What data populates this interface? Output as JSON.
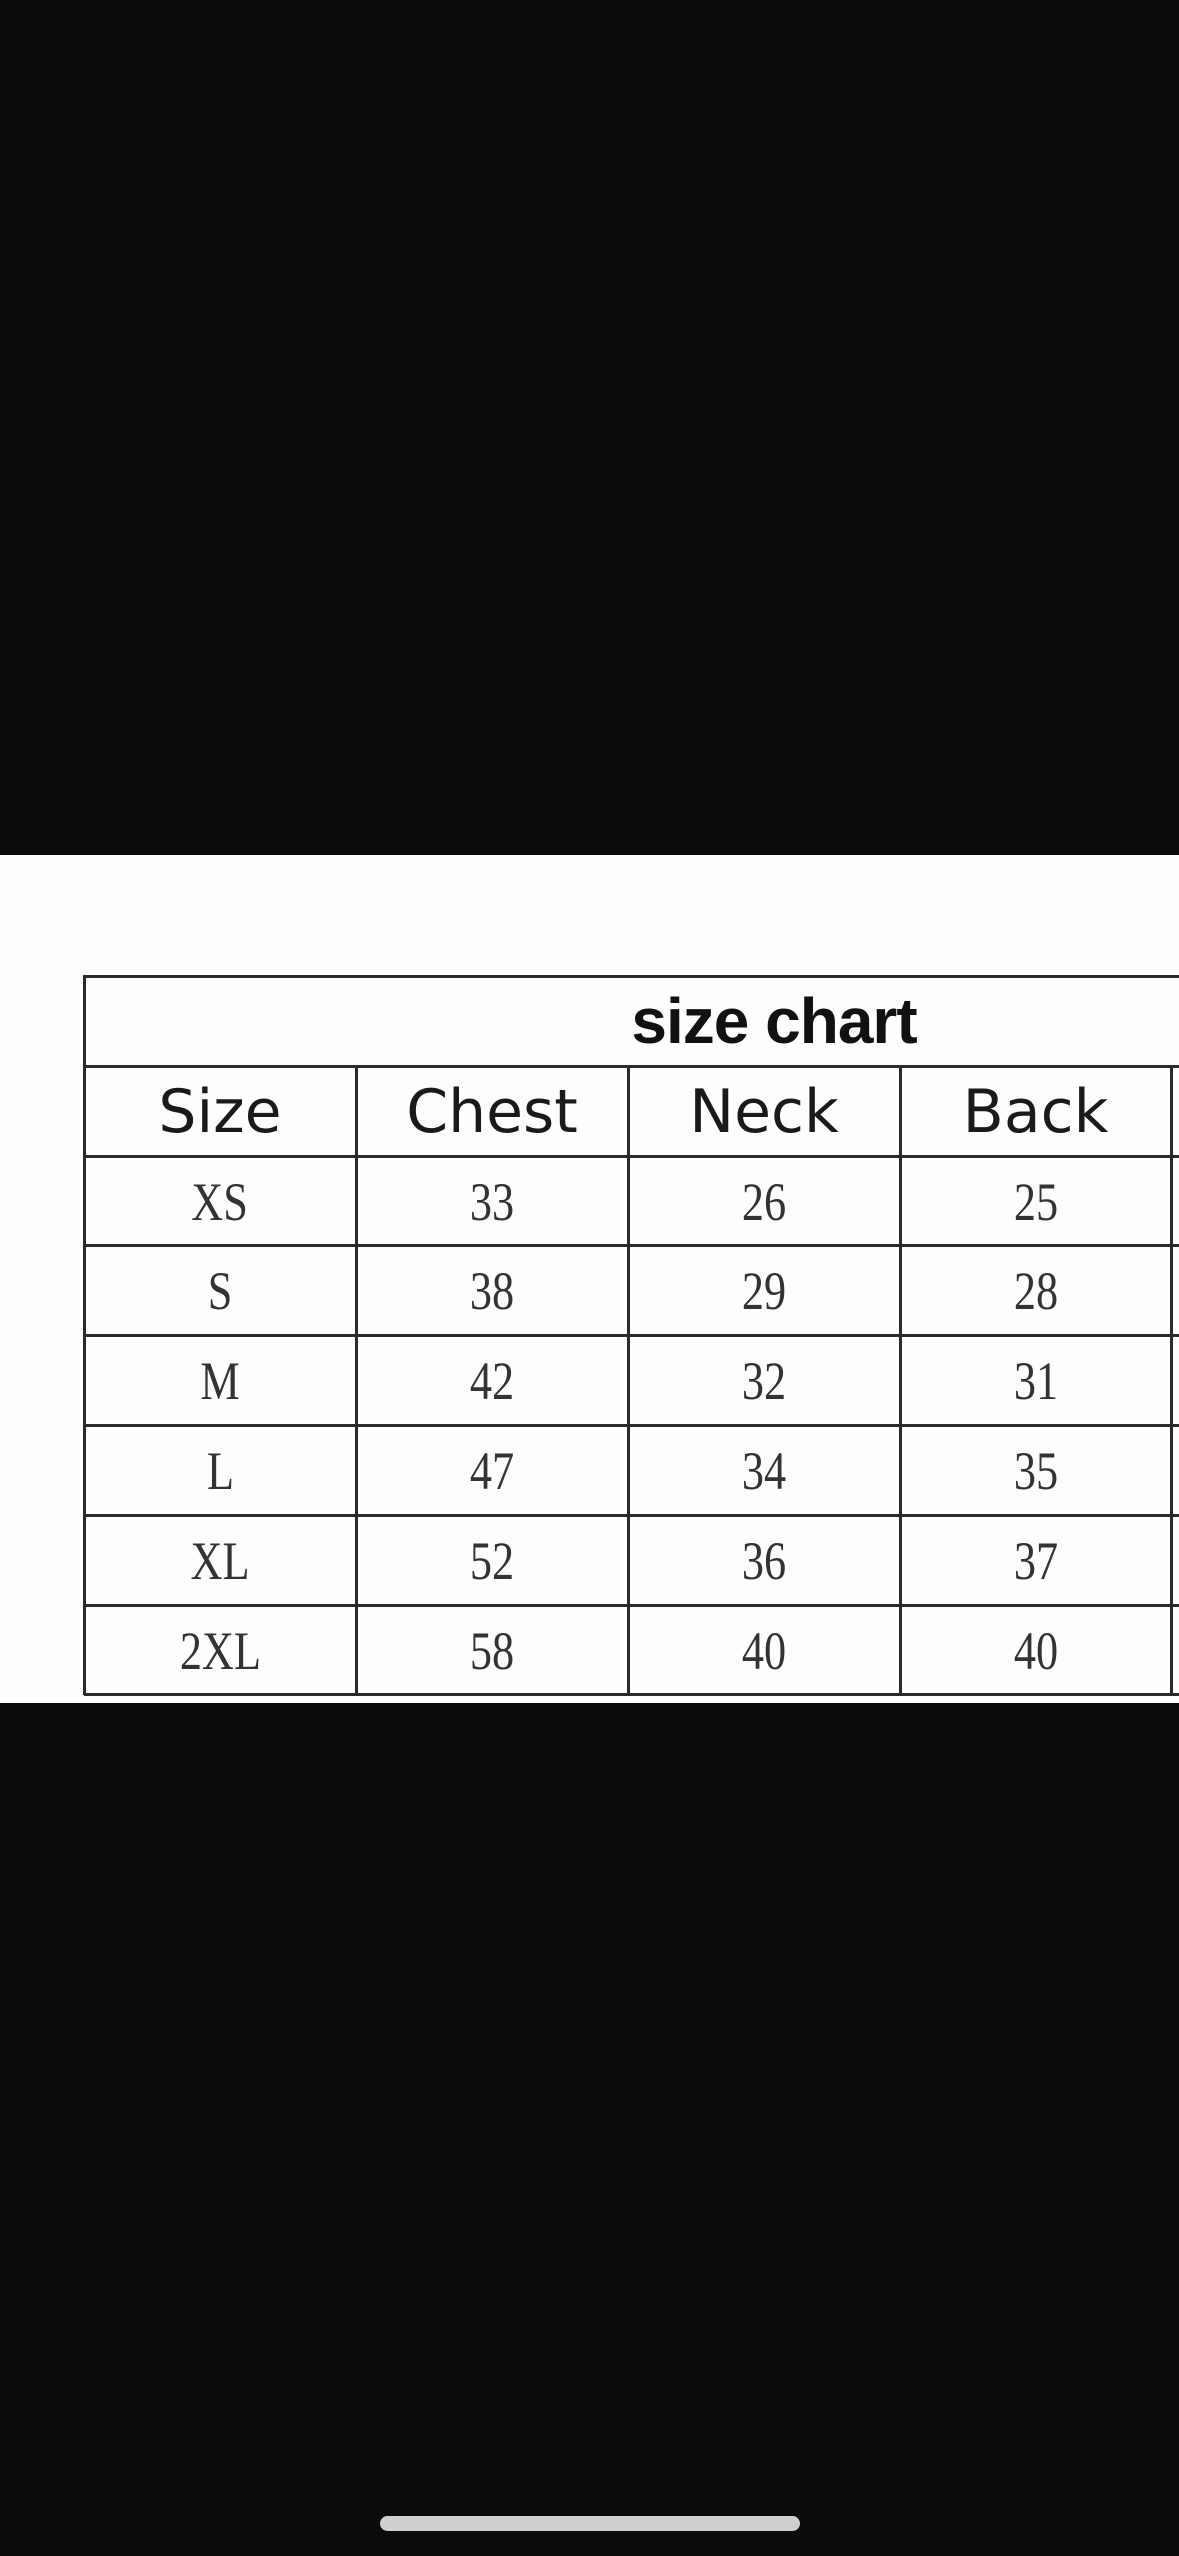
{
  "chart_data": {
    "type": "table",
    "title": "size chart",
    "columns": [
      "Size",
      "Chest",
      "Neck",
      "Back"
    ],
    "rows": [
      [
        "XS",
        "33",
        "26",
        "25"
      ],
      [
        "S",
        "38",
        "29",
        "28"
      ],
      [
        "M",
        "42",
        "32",
        "31"
      ],
      [
        "L",
        "47",
        "34",
        "35"
      ],
      [
        "XL",
        "52",
        "36",
        "37"
      ],
      [
        "2XL",
        "58",
        "40",
        "40"
      ]
    ]
  }
}
